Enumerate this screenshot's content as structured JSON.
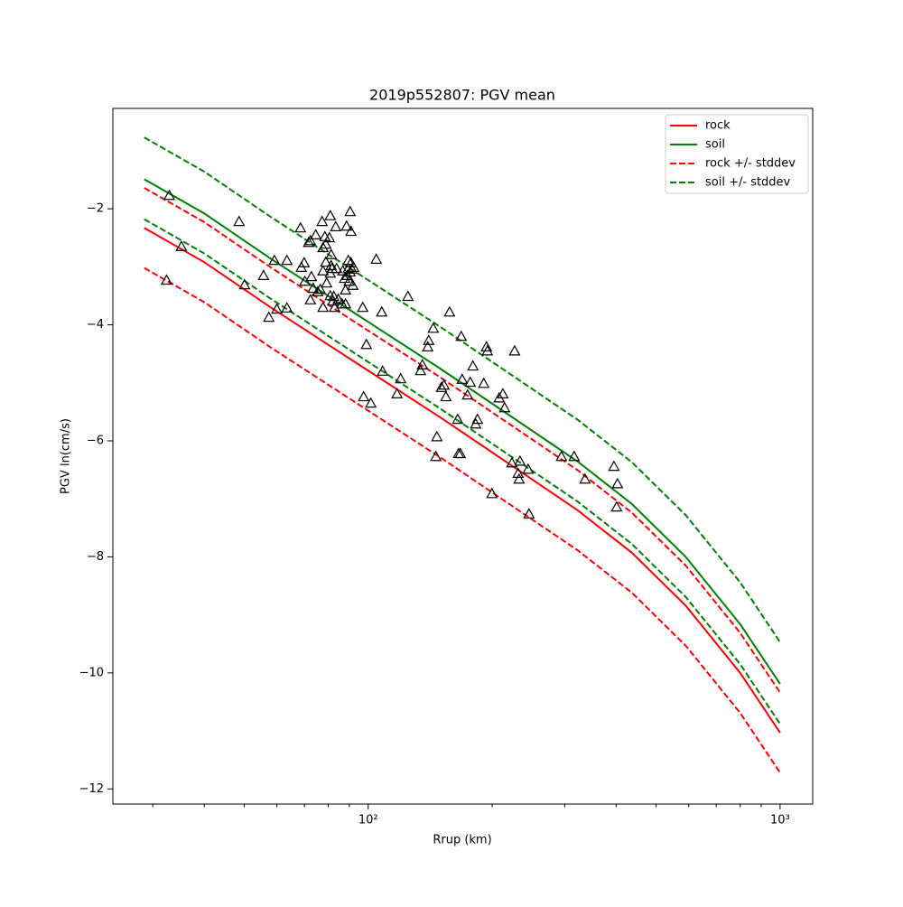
{
  "chart_data": {
    "type": "line",
    "title": "2019p552807: PGV mean",
    "x_label": "Rrup (km)",
    "y_label": "PGV ln(cm/s)",
    "x_scale": "log",
    "xlim": [
      24,
      1200
    ],
    "ylim": [
      -12.26,
      -0.27
    ],
    "xticks": [
      {
        "value": 100,
        "label": "10²"
      },
      {
        "value": 1000,
        "label": "10³"
      }
    ],
    "xminorticks": [
      30,
      40,
      50,
      60,
      70,
      80,
      90,
      200,
      300,
      400,
      500,
      600,
      700,
      800,
      900
    ],
    "yticks": [
      {
        "value": -12,
        "label": "−12"
      },
      {
        "value": -10,
        "label": "−10"
      },
      {
        "value": -8,
        "label": "−8"
      },
      {
        "value": -6,
        "label": "−6"
      },
      {
        "value": -4,
        "label": "−4"
      },
      {
        "value": -2,
        "label": "−2"
      }
    ],
    "legend": "upper right",
    "x": [
      28.6,
      40,
      58,
      100,
      150,
      215,
      323,
      437,
      590,
      800,
      1000
    ],
    "series": [
      {
        "name": "rock",
        "color": "#ff0000",
        "style": "solid",
        "values": [
          -2.33,
          -2.92,
          -3.7,
          -4.79,
          -5.6,
          -6.35,
          -7.2,
          -7.93,
          -8.84,
          -10.0,
          -11.03
        ]
      },
      {
        "name": "soil",
        "color": "#008000",
        "style": "solid",
        "values": [
          -1.49,
          -2.08,
          -2.86,
          -3.95,
          -4.76,
          -5.51,
          -6.36,
          -7.09,
          -8.0,
          -9.16,
          -10.19
        ]
      },
      {
        "name": "rock +/- stddev",
        "color": "#ff0000",
        "style": "dashed",
        "upper": [
          -1.64,
          -2.23,
          -3.01,
          -4.1,
          -4.91,
          -5.66,
          -6.51,
          -7.24,
          -8.15,
          -9.31,
          -10.34
        ],
        "lower": [
          -3.02,
          -3.61,
          -4.39,
          -5.48,
          -6.29,
          -7.04,
          -7.89,
          -8.62,
          -9.53,
          -10.69,
          -11.72
        ]
      },
      {
        "name": "soil +/- stddev",
        "color": "#008000",
        "style": "dashed",
        "upper": [
          -0.77,
          -1.36,
          -2.14,
          -3.23,
          -4.04,
          -4.79,
          -5.64,
          -6.37,
          -7.28,
          -8.44,
          -9.47
        ],
        "lower": [
          -2.18,
          -2.77,
          -3.55,
          -4.64,
          -5.45,
          -6.2,
          -7.05,
          -7.78,
          -8.69,
          -9.85,
          -10.88
        ]
      }
    ],
    "scatter": {
      "marker": "triangle",
      "color": "#000000",
      "x": [
        32.9,
        32.4,
        35.2,
        48.6,
        50.1,
        55.7,
        57.4,
        59.2,
        60.0,
        63.5,
        63.5,
        68.5,
        68.8,
        69.9,
        70.2,
        71.7,
        72.4,
        72.4,
        72.8,
        73.5,
        74.6,
        75.4,
        76.5,
        77.3,
        77.7,
        77.7,
        77.7,
        78.5,
        78.9,
        78.9,
        79.3,
        80.5,
        80.9,
        80.9,
        80.9,
        81.3,
        81.3,
        81.7,
        82.1,
        82.5,
        82.9,
        83.4,
        83.8,
        84.6,
        86.4,
        86.8,
        87.7,
        88.1,
        88.1,
        88.6,
        89.0,
        89.5,
        89.5,
        89.9,
        90.4,
        90.4,
        90.8,
        90.8,
        91.3,
        91.8,
        92.2,
        97.0,
        97.5,
        99.0,
        101.5,
        104.6,
        107.9,
        108.4,
        117.5,
        119.9,
        124.9,
        134.0,
        135.4,
        139.5,
        140.3,
        143.9,
        146.8,
        146.0,
        150.6,
        152.8,
        154.4,
        157.6,
        164.9,
        165.7,
        167.4,
        168.2,
        169.1,
        174.3,
        176.9,
        179.6,
        182.4,
        184.2,
        190.8,
        193.7,
        194.7,
        199.7,
        208.0,
        212.3,
        214.4,
        223.3,
        226.7,
        231.2,
        232.4,
        233.6,
        244.5,
        245.7,
        294.6,
        316.2,
        336.0,
        395.0,
        402.9,
        401.0
      ],
      "y": [
        -1.77,
        -3.23,
        -2.65,
        -2.22,
        -3.31,
        -3.15,
        -3.87,
        -2.89,
        -3.73,
        -2.89,
        -3.71,
        -2.33,
        -3.01,
        -2.93,
        -3.25,
        -2.58,
        -2.55,
        -3.57,
        -3.17,
        -3.37,
        -2.45,
        -3.43,
        -3.39,
        -2.22,
        -3.07,
        -3.7,
        -2.67,
        -2.48,
        -2.61,
        -2.92,
        -3.28,
        -2.5,
        -3.11,
        -3.5,
        -2.12,
        -2.79,
        -2.98,
        -3.03,
        -3.59,
        -3.51,
        -3.7,
        -2.31,
        -3.03,
        -3.56,
        -3.64,
        -3.07,
        -3.2,
        -3.4,
        -3.64,
        -2.3,
        -3.15,
        -2.89,
        -3.03,
        -3.25,
        -3.09,
        -2.05,
        -2.39,
        -2.93,
        -3.04,
        -3.32,
        -3.01,
        -3.7,
        -5.24,
        -4.34,
        -5.35,
        -2.87,
        -3.78,
        -4.8,
        -5.19,
        -4.93,
        -3.51,
        -4.79,
        -4.69,
        -4.38,
        -4.27,
        -4.06,
        -5.93,
        -6.27,
        -5.08,
        -5.04,
        -5.24,
        -3.78,
        -5.63,
        -6.22,
        -6.22,
        -4.2,
        -4.94,
        -5.21,
        -4.99,
        -4.71,
        -5.71,
        -5.63,
        -5.01,
        -4.38,
        -4.45,
        -6.91,
        -5.26,
        -5.19,
        -5.43,
        -6.38,
        -4.45,
        -6.56,
        -6.66,
        -6.35,
        -6.49,
        -7.26,
        -6.27,
        -6.27,
        -6.66,
        -6.44,
        -6.74,
        -7.14
      ]
    }
  }
}
